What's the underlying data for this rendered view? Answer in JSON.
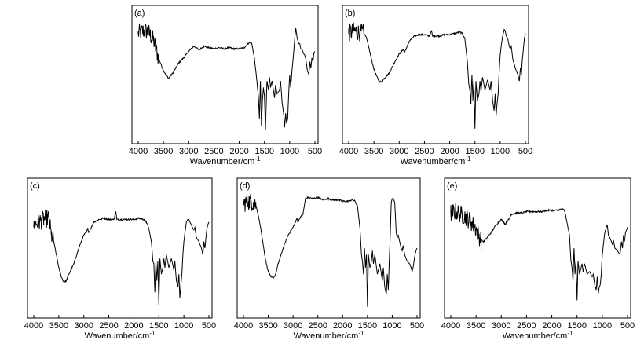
{
  "chart_data": [
    {
      "type": "line",
      "panel_label": "(a)",
      "xlabel": "Wavenumber/cm",
      "xlabel_sup": "-1",
      "xlim": [
        4000,
        500
      ],
      "x_ticks": [
        4000,
        3500,
        3000,
        2500,
        2000,
        1500,
        1000,
        500
      ],
      "x_tick_labels": [
        "4000",
        "3500",
        "3000",
        "2500",
        "2000",
        "1500",
        "1000",
        "500"
      ],
      "ylim": [
        0,
        100
      ],
      "series": [
        {
          "x": [
            4000,
            3900,
            3800,
            3700,
            3600,
            3500,
            3400,
            3300,
            3200,
            3100,
            3000,
            2900,
            2850,
            2800,
            2700,
            2600,
            2500,
            2400,
            2300,
            2200,
            2100,
            2000,
            1900,
            1800,
            1750,
            1700,
            1650,
            1620,
            1600,
            1580,
            1560,
            1540,
            1520,
            1500,
            1480,
            1450,
            1420,
            1400,
            1380,
            1350,
            1300,
            1280,
            1250,
            1200,
            1180,
            1150,
            1120,
            1100,
            1080,
            1060,
            1040,
            1020,
            1000,
            980,
            950,
            920,
            900,
            880,
            850,
            820,
            800,
            780,
            750,
            720,
            700,
            680,
            650,
            620,
            600,
            580,
            560,
            540,
            520,
            500
          ],
          "y": [
            82,
            84,
            83,
            77,
            63,
            53,
            47,
            52,
            59,
            63,
            68,
            72,
            71,
            69,
            72,
            71,
            70,
            71,
            70,
            71,
            70,
            70,
            71,
            75,
            74,
            63,
            45,
            33,
            16,
            45,
            10,
            30,
            40,
            33,
            7,
            45,
            38,
            48,
            40,
            45,
            32,
            42,
            35,
            38,
            45,
            28,
            20,
            9,
            20,
            12,
            16,
            35,
            50,
            40,
            55,
            68,
            78,
            86,
            78,
            74,
            74,
            70,
            69,
            66,
            65,
            62,
            53,
            50,
            60,
            55,
            63,
            60,
            67,
            68
          ],
          "noise_to": 3600
        }
      ]
    },
    {
      "type": "line",
      "panel_label": "(b)",
      "xlabel": "Wavenumber/cm",
      "xlabel_sup": "-1",
      "xlim": [
        4000,
        500
      ],
      "x_ticks": [
        4000,
        3500,
        3000,
        2500,
        2000,
        1500,
        1000,
        500
      ],
      "x_tick_labels": [
        "4000",
        "3500",
        "3000",
        "2500",
        "2000",
        "1500",
        "1000",
        "500"
      ],
      "ylim": [
        0,
        100
      ],
      "series": [
        {
          "x": [
            4000,
            3900,
            3800,
            3700,
            3650,
            3600,
            3550,
            3500,
            3450,
            3400,
            3350,
            3300,
            3200,
            3100,
            3000,
            2950,
            2920,
            2900,
            2850,
            2800,
            2700,
            2600,
            2500,
            2400,
            2360,
            2340,
            2300,
            2200,
            2100,
            2000,
            1900,
            1800,
            1750,
            1700,
            1650,
            1620,
            1600,
            1580,
            1560,
            1540,
            1520,
            1500,
            1480,
            1450,
            1420,
            1400,
            1380,
            1350,
            1300,
            1250,
            1200,
            1180,
            1150,
            1120,
            1100,
            1080,
            1060,
            1040,
            1020,
            1000,
            980,
            950,
            920,
            900,
            880,
            850,
            820,
            800,
            780,
            750,
            700,
            650,
            620,
            600,
            580,
            560,
            540,
            520,
            500
          ],
          "y": [
            82,
            84,
            83,
            82,
            79,
            71,
            62,
            54,
            49,
            45,
            44,
            47,
            51,
            59,
            66,
            68,
            70,
            67,
            71,
            76,
            80,
            81,
            81,
            80,
            84,
            80,
            80,
            80,
            81,
            81,
            82,
            83,
            82,
            78,
            60,
            42,
            38,
            27,
            50,
            30,
            45,
            8,
            45,
            30,
            35,
            45,
            37,
            48,
            38,
            46,
            38,
            45,
            30,
            22,
            35,
            18,
            28,
            35,
            52,
            65,
            72,
            80,
            85,
            84,
            80,
            78,
            72,
            70,
            72,
            62,
            55,
            50,
            45,
            55,
            50,
            62,
            70,
            78,
            82
          ],
          "noise_to": 3700
        }
      ]
    },
    {
      "type": "line",
      "panel_label": "(c)",
      "xlabel": "Wavenumber/cm",
      "xlabel_sup": "-1",
      "xlim": [
        4000,
        500
      ],
      "x_ticks": [
        4000,
        3500,
        3000,
        2500,
        2000,
        1500,
        1000,
        500
      ],
      "x_tick_labels": [
        "4000",
        "3500",
        "3000",
        "2500",
        "2000",
        "1500",
        "1000",
        "500"
      ],
      "ylim": [
        0,
        100
      ],
      "series": [
        {
          "x": [
            4000,
            3900,
            3800,
            3700,
            3650,
            3600,
            3550,
            3500,
            3450,
            3400,
            3350,
            3300,
            3200,
            3100,
            3000,
            2950,
            2920,
            2900,
            2850,
            2800,
            2700,
            2600,
            2500,
            2400,
            2360,
            2340,
            2300,
            2200,
            2100,
            2000,
            1900,
            1800,
            1750,
            1700,
            1650,
            1620,
            1600,
            1580,
            1560,
            1540,
            1520,
            1500,
            1480,
            1450,
            1420,
            1400,
            1380,
            1350,
            1300,
            1250,
            1200,
            1180,
            1150,
            1120,
            1100,
            1080,
            1060,
            1040,
            1020,
            1000,
            980,
            950,
            920,
            900,
            880,
            850,
            820,
            800,
            780,
            750,
            700,
            650,
            620,
            600,
            580,
            560,
            540,
            520,
            500
          ],
          "y": [
            68,
            70,
            72,
            73,
            60,
            55,
            45,
            35,
            28,
            24,
            25,
            30,
            38,
            50,
            60,
            62,
            65,
            62,
            66,
            70,
            72,
            73,
            72,
            72,
            78,
            72,
            72,
            72,
            72,
            72,
            73,
            72,
            70,
            65,
            55,
            40,
            38,
            16,
            40,
            25,
            40,
            6,
            42,
            30,
            35,
            42,
            35,
            45,
            35,
            42,
            33,
            40,
            25,
            20,
            30,
            12,
            22,
            30,
            45,
            55,
            62,
            70,
            72,
            72,
            70,
            68,
            65,
            64,
            66,
            58,
            55,
            50,
            45,
            55,
            50,
            58,
            65,
            68,
            70
          ],
          "noise_to": 3600
        }
      ]
    },
    {
      "type": "line",
      "panel_label": "(d)",
      "xlabel": "Wavenumber/cm",
      "xlabel_sup": "-1",
      "xlim": [
        4000,
        500
      ],
      "x_ticks": [
        4000,
        3500,
        3000,
        2500,
        2000,
        1500,
        1000,
        500
      ],
      "x_tick_labels": [
        "4000",
        "3500",
        "3000",
        "2500",
        "2000",
        "1500",
        "1000",
        "500"
      ],
      "ylim": [
        0,
        100
      ],
      "series": [
        {
          "x": [
            4000,
            3900,
            3800,
            3750,
            3700,
            3650,
            3600,
            3550,
            3500,
            3450,
            3400,
            3350,
            3300,
            3200,
            3100,
            3000,
            2950,
            2920,
            2900,
            2850,
            2800,
            2750,
            2700,
            2600,
            2500,
            2400,
            2300,
            2200,
            2100,
            2000,
            1900,
            1800,
            1750,
            1700,
            1650,
            1620,
            1600,
            1580,
            1560,
            1540,
            1520,
            1500,
            1480,
            1450,
            1420,
            1400,
            1380,
            1350,
            1300,
            1250,
            1200,
            1180,
            1150,
            1120,
            1100,
            1080,
            1060,
            1040,
            1020,
            1000,
            980,
            950,
            920,
            900,
            880,
            850,
            820,
            800,
            780,
            750,
            700,
            650,
            620,
            600,
            580,
            560,
            540,
            520,
            500
          ],
          "y": [
            84,
            86,
            85,
            83,
            75,
            65,
            52,
            40,
            32,
            28,
            27,
            30,
            38,
            50,
            60,
            66,
            70,
            73,
            70,
            74,
            76,
            88,
            89,
            88,
            89,
            87,
            88,
            87,
            87,
            86,
            86,
            87,
            86,
            82,
            65,
            45,
            40,
            30,
            50,
            35,
            45,
            5,
            45,
            35,
            40,
            48,
            38,
            45,
            30,
            38,
            25,
            35,
            20,
            15,
            30,
            18,
            40,
            60,
            85,
            88,
            88,
            85,
            62,
            58,
            60,
            55,
            50,
            48,
            52,
            45,
            40,
            38,
            35,
            32,
            35,
            40,
            45,
            48,
            50
          ],
          "noise_to": 3750
        }
      ]
    },
    {
      "type": "line",
      "panel_label": "(e)",
      "xlabel": "Wavenumber/cm",
      "xlabel_sup": "-1",
      "xlim": [
        4000,
        500
      ],
      "x_ticks": [
        4000,
        3500,
        3000,
        2500,
        2000,
        1500,
        1000,
        500
      ],
      "x_tick_labels": [
        "4000",
        "3500",
        "3000",
        "2500",
        "2000",
        "1500",
        "1000",
        "500"
      ],
      "ylim": [
        0,
        100
      ],
      "series": [
        {
          "x": [
            4000,
            3900,
            3800,
            3700,
            3600,
            3500,
            3450,
            3400,
            3350,
            3300,
            3200,
            3100,
            3000,
            2950,
            2920,
            2900,
            2850,
            2800,
            2700,
            2600,
            2500,
            2400,
            2300,
            2200,
            2100,
            2000,
            1900,
            1800,
            1750,
            1720,
            1700,
            1650,
            1620,
            1600,
            1580,
            1560,
            1540,
            1520,
            1500,
            1480,
            1450,
            1420,
            1400,
            1380,
            1350,
            1300,
            1250,
            1200,
            1180,
            1150,
            1120,
            1100,
            1080,
            1060,
            1040,
            1020,
            1000,
            980,
            950,
            920,
            900,
            880,
            850,
            820,
            800,
            780,
            750,
            700,
            650,
            620,
            600,
            580,
            560,
            540,
            520,
            500
          ],
          "y": [
            77,
            78,
            76,
            74,
            70,
            65,
            60,
            56,
            55,
            57,
            62,
            68,
            72,
            70,
            68,
            70,
            72,
            76,
            77,
            77,
            78,
            78,
            78,
            78,
            79,
            79,
            79,
            80,
            79,
            74,
            70,
            60,
            40,
            35,
            25,
            50,
            30,
            40,
            10,
            40,
            30,
            35,
            38,
            32,
            38,
            30,
            32,
            28,
            30,
            22,
            18,
            28,
            15,
            20,
            22,
            30,
            45,
            52,
            62,
            66,
            68,
            60,
            58,
            55,
            53,
            56,
            50,
            48,
            45,
            55,
            50,
            60,
            55,
            62,
            64,
            66
          ],
          "noise_to": 3400
        }
      ]
    }
  ]
}
